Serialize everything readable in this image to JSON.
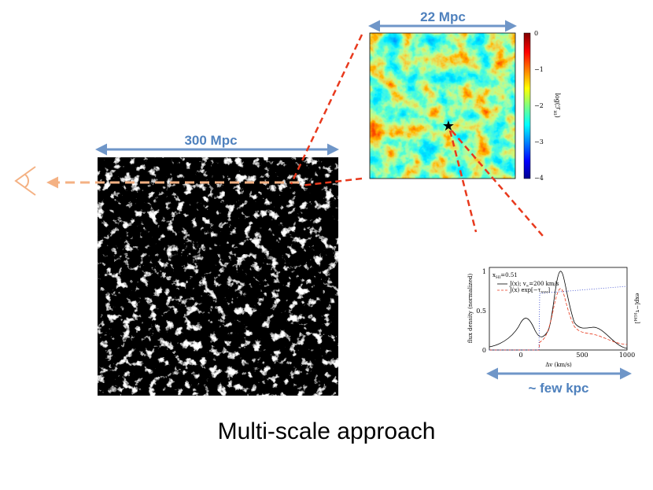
{
  "labels": {
    "small_scale": "22 Mpc",
    "large_scale": "300 Mpc",
    "spectrum_scale": "~ few kpc",
    "title": "Multi-scale approach"
  },
  "colorbar": {
    "ticks": [
      "0",
      "−1",
      "−2",
      "−3",
      "−4"
    ],
    "label": [
      "log(ℱ",
      "HI",
      ")"
    ]
  },
  "inset": {
    "annotation": [
      "x",
      "HI",
      "=0.51"
    ],
    "legend": [
      [
        "J(x); v",
        "w",
        "=200 km/s"
      ],
      [
        "J(x) exp[−τ",
        "IGM",
        "]"
      ]
    ],
    "y_label": "flux density (normalized)",
    "y2_label": [
      "exp[−τ",
      "IGM",
      "]"
    ],
    "x_label": "Δv (km/s)",
    "xticks": [
      "0",
      "500",
      "1000"
    ],
    "yticks": [
      "0",
      "0.5",
      "1"
    ]
  }
}
